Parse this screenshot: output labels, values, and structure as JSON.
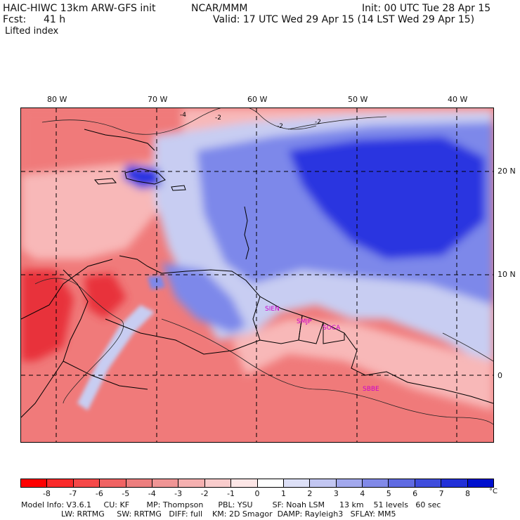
{
  "header": {
    "model": "HAIC-HIWC 13km ARW-GFS init",
    "org": "NCAR/MMM",
    "init": "Init: 00 UTC Tue 28 Apr 15",
    "fcst_label": "Fcst:",
    "fcst_value": "41 h",
    "valid": "Valid: 17 UTC Wed 29 Apr 15 (14 LST Wed 29 Apr 15)",
    "field": "Lifted index"
  },
  "map": {
    "lon_labels": [
      "80 W",
      "70 W",
      "60 W",
      "50 W",
      "40 W"
    ],
    "lat_labels": [
      "20 N",
      "10 N",
      "0"
    ],
    "contour_labels": [
      "-4",
      "-2",
      "-2",
      "-2"
    ],
    "stations": [
      "SIEN",
      "SMJP",
      "SOCA",
      "SBBE"
    ],
    "colors": {
      "strong_unstable": "#e8303a",
      "unstable": "#f07a7a",
      "weak_unstable": "#f8b8b8",
      "neutral": "#ffffff",
      "weak_stable": "#c8cdf2",
      "stable": "#7d88ea",
      "strong_stable": "#2a36e0",
      "station": "#cc00cc"
    }
  },
  "colorbar": {
    "labels": [
      "-8",
      "-7",
      "-6",
      "-5",
      "-4",
      "-3",
      "-2",
      "-1",
      "0",
      "1",
      "2",
      "3",
      "4",
      "5",
      "6",
      "7",
      "8"
    ],
    "unit": "°C",
    "colors": [
      "#ff0000",
      "#fa2a2a",
      "#f54848",
      "#f06363",
      "#ec7e7e",
      "#f09595",
      "#f5b0b0",
      "#f9cccc",
      "#fde6e6",
      "#ffffff",
      "#dde0f7",
      "#c2c6f2",
      "#a2a8ed",
      "#8189e8",
      "#5f6ae2",
      "#3f4ddd",
      "#2230d8",
      "#0010ce"
    ]
  },
  "footer": {
    "line1": "Model Info: V3.6.1     CU: KF       MP: Thompson      PBL: YSU        SF: Noah LSM      13 km    51 levels   60 sec",
    "line2": "LW: RRTMG     SW: RRTMG   DIFF: full    KM: 2D Smagor  DAMP: Rayleigh3   SFLAY: MM5"
  }
}
